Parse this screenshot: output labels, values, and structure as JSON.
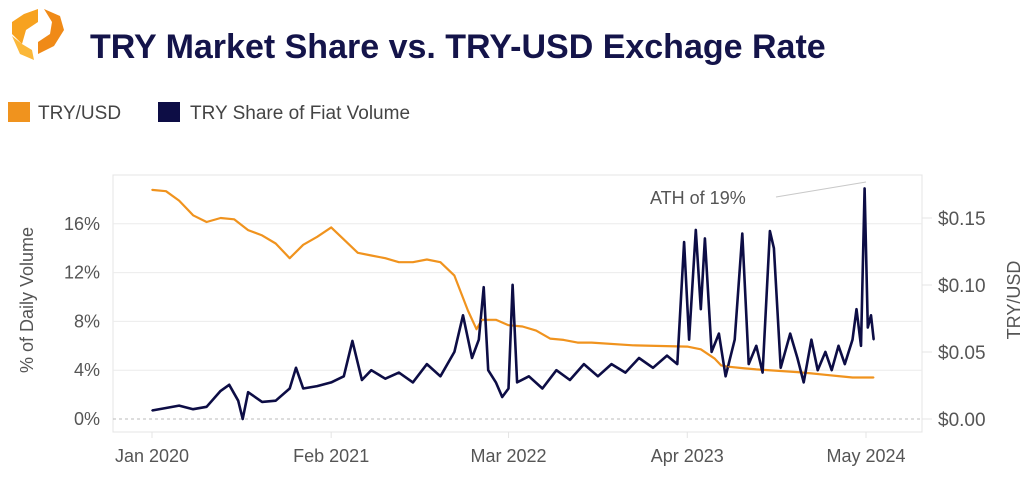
{
  "colors": {
    "title": "#14144a",
    "try_usd": "#f0931e",
    "share": "#0d0d45",
    "grid": "#e6e6e6",
    "text": "#555555"
  },
  "chart_data": {
    "type": "line",
    "title": "TRY Market Share vs. TRY-USD Exchage Rate",
    "legend": {
      "placement": "top-left",
      "entries": [
        "TRY/USD",
        "TRY Share of Fiat Volume"
      ]
    },
    "ylabel_left": "% of Daily Volume",
    "ylabel_right": "TRY/USD",
    "x_ticks": [
      {
        "label": "Jan 2020",
        "date": "2020-01-01"
      },
      {
        "label": "Feb 2021",
        "date": "2021-02-01"
      },
      {
        "label": "Mar 2022",
        "date": "2022-03-01"
      },
      {
        "label": "Apr 2023",
        "date": "2023-04-01"
      },
      {
        "label": "May 2024",
        "date": "2024-05-01"
      }
    ],
    "y_left": {
      "range": [
        0,
        20
      ],
      "ticks": [
        {
          "v": 0,
          "label": "0%"
        },
        {
          "v": 4,
          "label": "4%"
        },
        {
          "v": 8,
          "label": "8%"
        },
        {
          "v": 12,
          "label": "12%"
        },
        {
          "v": 16,
          "label": "16%"
        }
      ]
    },
    "y_right": {
      "range": [
        0,
        0.18
      ],
      "ticks": [
        {
          "v": 0,
          "label": "$0.00"
        },
        {
          "v": 0.05,
          "label": "$0.05"
        },
        {
          "v": 0.1,
          "label": "$0.10"
        },
        {
          "v": 0.15,
          "label": "$0.15"
        }
      ]
    },
    "grid": true,
    "annotation": {
      "text": "ATH of 19%",
      "date": "2024-04-28",
      "value": 18.9
    },
    "series": [
      {
        "name": "TRY/USD",
        "axis": "right",
        "points": [
          [
            "2020-01-01",
            0.171
          ],
          [
            "2020-02-01",
            0.17
          ],
          [
            "2020-03-01",
            0.163
          ],
          [
            "2020-04-01",
            0.152
          ],
          [
            "2020-05-01",
            0.147
          ],
          [
            "2020-06-01",
            0.15
          ],
          [
            "2020-07-01",
            0.149
          ],
          [
            "2020-08-01",
            0.141
          ],
          [
            "2020-09-01",
            0.137
          ],
          [
            "2020-10-01",
            0.131
          ],
          [
            "2020-11-01",
            0.12
          ],
          [
            "2020-12-01",
            0.13
          ],
          [
            "2021-01-01",
            0.136
          ],
          [
            "2021-02-01",
            0.143
          ],
          [
            "2021-03-01",
            0.134
          ],
          [
            "2021-04-01",
            0.124
          ],
          [
            "2021-05-01",
            0.122
          ],
          [
            "2021-06-01",
            0.12
          ],
          [
            "2021-07-01",
            0.117
          ],
          [
            "2021-08-01",
            0.117
          ],
          [
            "2021-09-01",
            0.119
          ],
          [
            "2021-10-01",
            0.117
          ],
          [
            "2021-11-01",
            0.107
          ],
          [
            "2021-12-01",
            0.081
          ],
          [
            "2021-12-20",
            0.067
          ],
          [
            "2022-01-01",
            0.074
          ],
          [
            "2022-02-01",
            0.074
          ],
          [
            "2022-03-01",
            0.07
          ],
          [
            "2022-04-01",
            0.069
          ],
          [
            "2022-05-01",
            0.066
          ],
          [
            "2022-06-01",
            0.06
          ],
          [
            "2022-07-01",
            0.059
          ],
          [
            "2022-08-01",
            0.057
          ],
          [
            "2022-09-01",
            0.057
          ],
          [
            "2022-12-01",
            0.055
          ],
          [
            "2023-04-01",
            0.054
          ],
          [
            "2023-05-01",
            0.052
          ],
          [
            "2023-06-01",
            0.045
          ],
          [
            "2023-06-15",
            0.04
          ],
          [
            "2023-07-01",
            0.039
          ],
          [
            "2023-08-01",
            0.038
          ],
          [
            "2023-09-01",
            0.037
          ],
          [
            "2023-12-01",
            0.035
          ],
          [
            "2024-01-01",
            0.034
          ],
          [
            "2024-02-01",
            0.033
          ],
          [
            "2024-03-01",
            0.032
          ],
          [
            "2024-04-01",
            0.031
          ],
          [
            "2024-05-18",
            0.031
          ]
        ]
      },
      {
        "name": "TRY Share of Fiat Volume",
        "axis": "left",
        "points": [
          [
            "2020-01-01",
            0.7
          ],
          [
            "2020-02-01",
            0.9
          ],
          [
            "2020-03-01",
            1.1
          ],
          [
            "2020-04-01",
            0.8
          ],
          [
            "2020-05-01",
            1.0
          ],
          [
            "2020-06-01",
            2.3
          ],
          [
            "2020-06-20",
            2.8
          ],
          [
            "2020-07-10",
            1.5
          ],
          [
            "2020-07-20",
            0.0
          ],
          [
            "2020-08-01",
            2.2
          ],
          [
            "2020-09-01",
            1.4
          ],
          [
            "2020-10-01",
            1.5
          ],
          [
            "2020-11-01",
            2.5
          ],
          [
            "2020-11-15",
            4.2
          ],
          [
            "2020-12-01",
            2.5
          ],
          [
            "2021-01-01",
            2.7
          ],
          [
            "2021-02-01",
            3.0
          ],
          [
            "2021-03-01",
            3.5
          ],
          [
            "2021-03-20",
            6.4
          ],
          [
            "2021-04-10",
            3.2
          ],
          [
            "2021-05-01",
            4.0
          ],
          [
            "2021-06-01",
            3.3
          ],
          [
            "2021-07-01",
            3.8
          ],
          [
            "2021-08-01",
            3.0
          ],
          [
            "2021-09-01",
            4.5
          ],
          [
            "2021-10-01",
            3.5
          ],
          [
            "2021-11-01",
            5.5
          ],
          [
            "2021-11-20",
            8.5
          ],
          [
            "2021-12-10",
            5.0
          ],
          [
            "2021-12-25",
            6.5
          ],
          [
            "2022-01-05",
            10.8
          ],
          [
            "2022-01-15",
            4.0
          ],
          [
            "2022-02-01",
            3.0
          ],
          [
            "2022-02-15",
            1.8
          ],
          [
            "2022-03-01",
            2.5
          ],
          [
            "2022-03-10",
            11.0
          ],
          [
            "2022-03-20",
            3.0
          ],
          [
            "2022-04-15",
            3.5
          ],
          [
            "2022-05-15",
            2.5
          ],
          [
            "2022-06-15",
            4.0
          ],
          [
            "2022-07-15",
            3.2
          ],
          [
            "2022-08-15",
            4.5
          ],
          [
            "2022-09-15",
            3.5
          ],
          [
            "2022-10-15",
            4.5
          ],
          [
            "2022-11-15",
            3.8
          ],
          [
            "2022-12-15",
            5.0
          ],
          [
            "2023-01-15",
            4.2
          ],
          [
            "2023-02-15",
            5.2
          ],
          [
            "2023-03-10",
            4.5
          ],
          [
            "2023-03-25",
            14.5
          ],
          [
            "2023-04-05",
            6.5
          ],
          [
            "2023-04-20",
            15.5
          ],
          [
            "2023-05-01",
            9.0
          ],
          [
            "2023-05-10",
            14.8
          ],
          [
            "2023-05-25",
            5.5
          ],
          [
            "2023-06-10",
            7.0
          ],
          [
            "2023-06-25",
            3.5
          ],
          [
            "2023-07-15",
            6.5
          ],
          [
            "2023-08-01",
            15.2
          ],
          [
            "2023-08-15",
            4.5
          ],
          [
            "2023-09-01",
            6.0
          ],
          [
            "2023-09-15",
            3.8
          ],
          [
            "2023-10-01",
            15.4
          ],
          [
            "2023-10-10",
            14.0
          ],
          [
            "2023-10-25",
            4.2
          ],
          [
            "2023-11-15",
            7.0
          ],
          [
            "2023-12-01",
            5.0
          ],
          [
            "2023-12-15",
            3.0
          ],
          [
            "2024-01-01",
            6.5
          ],
          [
            "2024-01-15",
            4.0
          ],
          [
            "2024-02-01",
            5.5
          ],
          [
            "2024-02-15",
            4.0
          ],
          [
            "2024-03-01",
            6.0
          ],
          [
            "2024-03-15",
            4.5
          ],
          [
            "2024-04-01",
            6.5
          ],
          [
            "2024-04-10",
            9.0
          ],
          [
            "2024-04-20",
            6.0
          ],
          [
            "2024-04-28",
            18.9
          ],
          [
            "2024-05-05",
            7.5
          ],
          [
            "2024-05-12",
            8.5
          ],
          [
            "2024-05-18",
            6.5
          ]
        ]
      }
    ]
  }
}
